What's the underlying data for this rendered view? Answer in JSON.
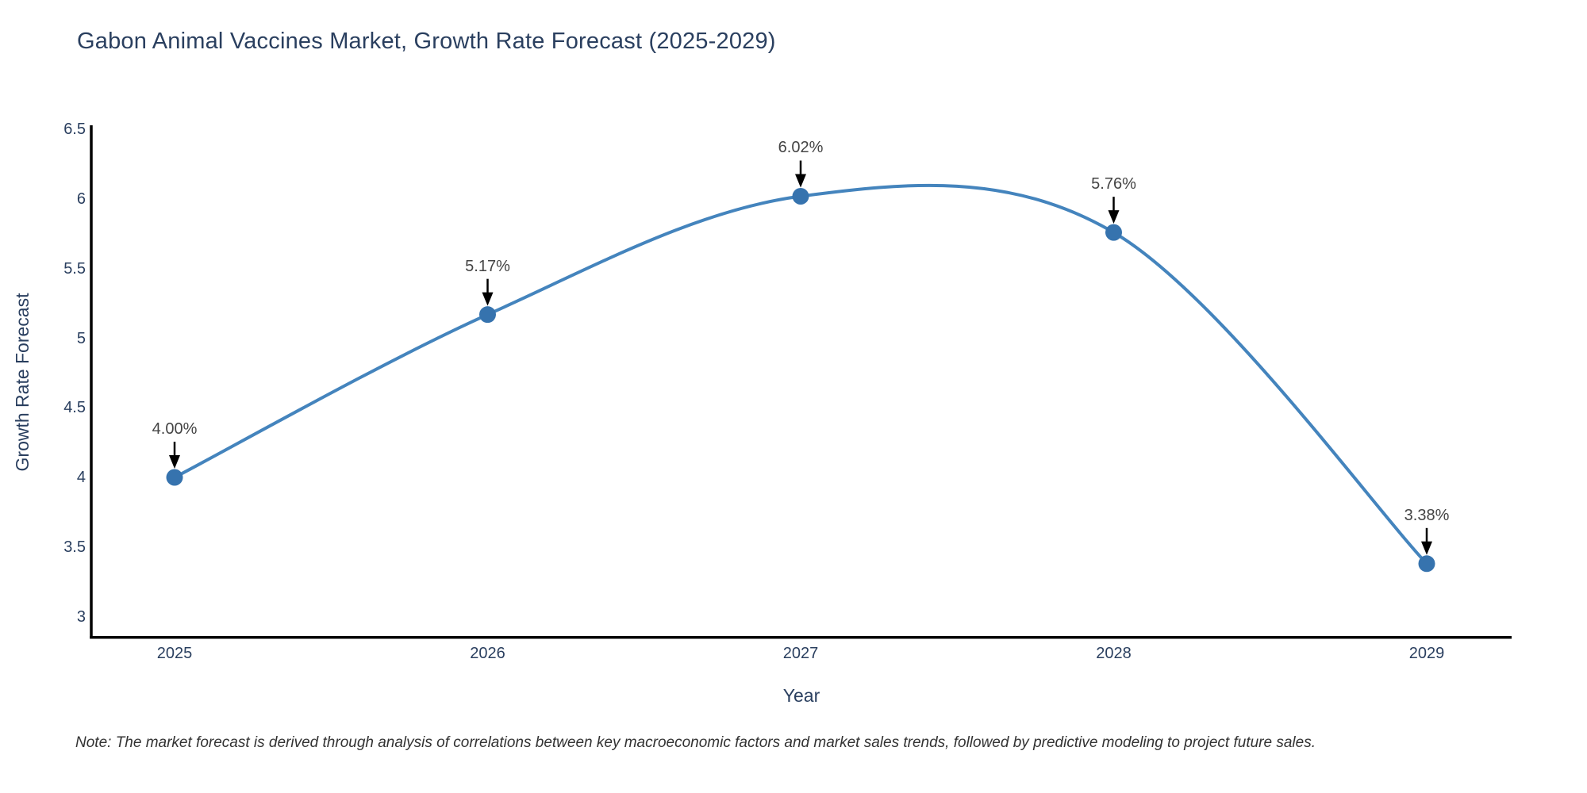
{
  "chart": {
    "colors": {
      "background": "#ffffff",
      "line": "#4484bd",
      "marker": "#3673ae",
      "axis": "#000000",
      "arrow": "#000000",
      "heading_text": "#2a3f5f",
      "tick_text": "#2a3f5f",
      "annotation_text": "#444444",
      "footnote_text": "#333333"
    },
    "footnote": "Note: The market forecast is derived through analysis of correlations between key macroeconomic factors and market sales trends, followed by predictive modeling to project future sales."
  },
  "chart_data": {
    "type": "line",
    "line_shape": "spline",
    "title": "Gabon Animal Vaccines Market, Growth Rate Forecast (2025-2029)",
    "xlabel": "Year",
    "ylabel": "Growth Rate Forecast",
    "x": [
      2025,
      2026,
      2027,
      2028,
      2029
    ],
    "y": [
      4.0,
      5.17,
      6.02,
      5.76,
      3.38
    ],
    "point_labels": [
      "4.00%",
      "5.17%",
      "6.02%",
      "5.76%",
      "3.38%"
    ],
    "x_tick_labels": [
      "2025",
      "2026",
      "2027",
      "2028",
      "2029"
    ],
    "y_ticks": [
      3,
      3.5,
      4,
      4.5,
      5,
      5.5,
      6,
      6.5
    ],
    "y_tick_labels": [
      "3",
      "3.5",
      "4",
      "4.5",
      "5",
      "5.5",
      "6",
      "6.5"
    ],
    "xlim": [
      2024.73,
      2029.27
    ],
    "ylim": [
      2.85,
      6.53
    ],
    "grid": false,
    "legend": "none",
    "markers": true,
    "annotations_style": "arrow-down"
  }
}
